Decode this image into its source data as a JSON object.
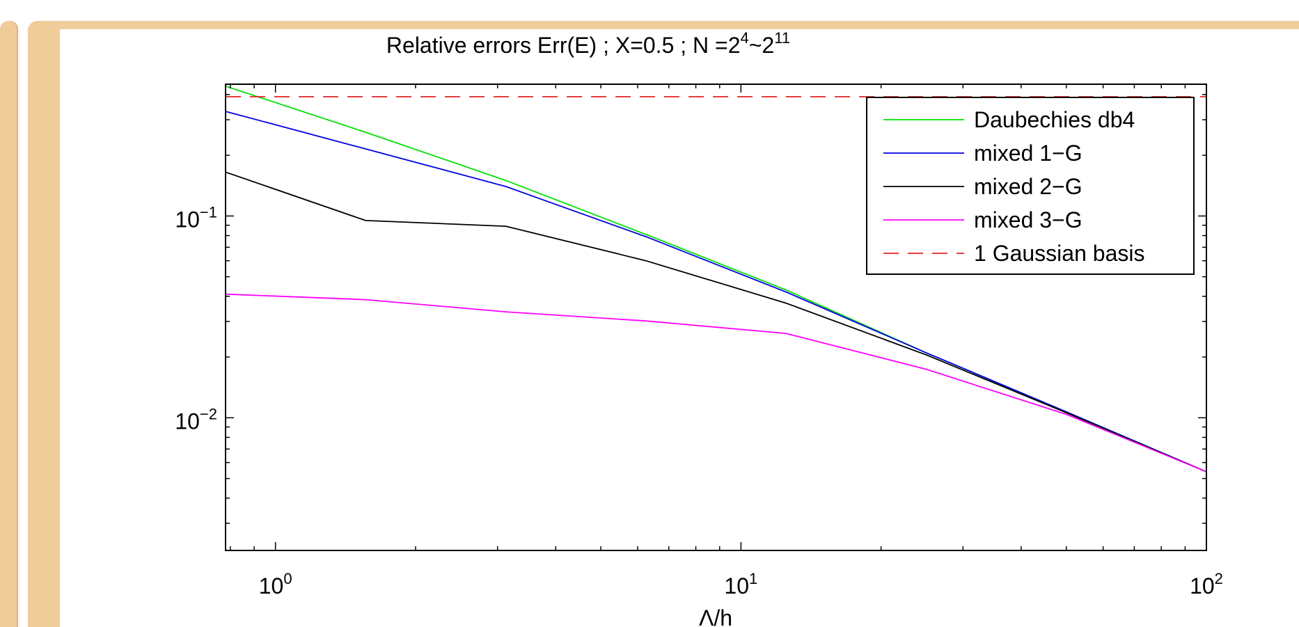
{
  "chart_data": {
    "type": "line",
    "title": "Relative errors Err(E) ; X=0.5 ; N =2^4~2^11",
    "title_parts": {
      "base": "Relative errors Err(E) ; X=0.5 ; N =2",
      "exp1": "4",
      "tilde": "~2",
      "exp2": "11"
    },
    "xlabel": "Λ/h",
    "ylabel": "",
    "x_scale": "log",
    "y_scale": "log",
    "xlim": [
      0.78125,
      100
    ],
    "ylim": [
      0.0022,
      0.45
    ],
    "x_ticks": [
      {
        "value": 1,
        "base": "10",
        "exp": "0"
      },
      {
        "value": 10,
        "base": "10",
        "exp": "1"
      },
      {
        "value": 100,
        "base": "10",
        "exp": "2"
      }
    ],
    "y_ticks": [
      {
        "value": 0.1,
        "base": "10",
        "exp": "−1"
      },
      {
        "value": 0.01,
        "base": "10",
        "exp": "−2"
      }
    ],
    "grid": false,
    "legend_position": "top-right",
    "x": [
      0.78125,
      1.5625,
      3.125,
      6.25,
      12.5,
      25,
      50,
      100
    ],
    "series": [
      {
        "name": "Daubechies db4",
        "color": "#00e000",
        "style": "solid",
        "values": [
          0.44,
          0.26,
          0.15,
          0.081,
          0.043,
          0.021,
          0.0107,
          0.0054
        ]
      },
      {
        "name": "mixed 1−G",
        "color": "#0000e0",
        "style": "solid",
        "values": [
          0.33,
          0.215,
          0.14,
          0.079,
          0.042,
          0.021,
          0.0107,
          0.0054
        ]
      },
      {
        "name": "mixed 2−G",
        "color": "#000000",
        "style": "solid",
        "values": [
          0.165,
          0.095,
          0.089,
          0.06,
          0.037,
          0.0205,
          0.0106,
          0.0054
        ]
      },
      {
        "name": "mixed 3−G",
        "color": "#ff00ff",
        "style": "solid",
        "values": [
          0.041,
          0.0385,
          0.0335,
          0.0302,
          0.0262,
          0.0174,
          0.0104,
          0.0054
        ]
      },
      {
        "name": "1 Gaussian basis",
        "color": "#e02020",
        "style": "dashed",
        "values": [
          0.39,
          0.39,
          0.39,
          0.39,
          0.39,
          0.39,
          0.39,
          0.39
        ]
      }
    ]
  }
}
